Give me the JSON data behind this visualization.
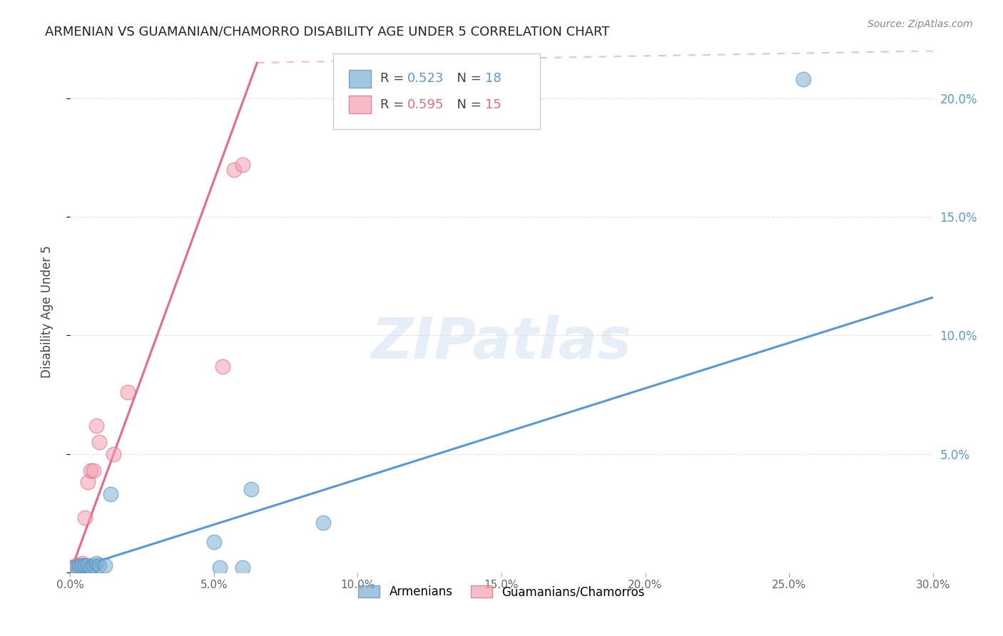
{
  "title": "ARMENIAN VS GUAMANIAN/CHAMORRO DISABILITY AGE UNDER 5 CORRELATION CHART",
  "source": "Source: ZipAtlas.com",
  "ylabel": "Disability Age Under 5",
  "xlim": [
    0.0,
    0.3
  ],
  "ylim": [
    0.0,
    0.22
  ],
  "xticks": [
    0.0,
    0.05,
    0.1,
    0.15,
    0.2,
    0.25,
    0.3
  ],
  "yticks": [
    0.0,
    0.05,
    0.1,
    0.15,
    0.2
  ],
  "xticklabels": [
    "0.0%",
    "5.0%",
    "10.0%",
    "15.0%",
    "20.0%",
    "25.0%",
    "30.0%"
  ],
  "yticklabels_right": [
    "",
    "5.0%",
    "10.0%",
    "15.0%",
    "20.0%"
  ],
  "armenian_x": [
    0.001,
    0.002,
    0.003,
    0.004,
    0.005,
    0.006,
    0.007,
    0.008,
    0.009,
    0.01,
    0.012,
    0.014,
    0.05,
    0.052,
    0.06,
    0.063,
    0.088,
    0.255
  ],
  "armenian_y": [
    0.002,
    0.002,
    0.003,
    0.003,
    0.003,
    0.003,
    0.002,
    0.003,
    0.004,
    0.003,
    0.003,
    0.033,
    0.013,
    0.002,
    0.002,
    0.035,
    0.021,
    0.208
  ],
  "guamanian_x": [
    0.001,
    0.002,
    0.003,
    0.004,
    0.005,
    0.006,
    0.007,
    0.008,
    0.009,
    0.01,
    0.015,
    0.02,
    0.053,
    0.057,
    0.06
  ],
  "guamanian_y": [
    0.002,
    0.003,
    0.002,
    0.004,
    0.023,
    0.038,
    0.043,
    0.043,
    0.062,
    0.055,
    0.05,
    0.076,
    0.087,
    0.17,
    0.172
  ],
  "armenian_R": 0.523,
  "armenian_N": 18,
  "guamanian_R": 0.595,
  "guamanian_N": 15,
  "armenian_color": "#7BAFD4",
  "guamanian_color": "#F4A0B0",
  "armenian_edge_color": "#5588BB",
  "guamanian_edge_color": "#E06080",
  "armenian_line_color": "#5599DD",
  "guamanian_line_color": "#EE6688",
  "arm_line_x0": 0.0,
  "arm_line_y0": 0.001,
  "arm_line_x1": 0.3,
  "arm_line_y1": 0.116,
  "gua_line_solid_x0": 0.0,
  "gua_line_solid_y0": 0.0,
  "gua_line_solid_x1": 0.065,
  "gua_line_solid_y1": 0.215,
  "gua_line_dashed_x0": 0.065,
  "gua_line_dashed_y0": 0.215,
  "gua_line_dashed_x1": 0.3,
  "gua_line_dashed_y1": 0.22,
  "watermark_text": "ZIPatlas",
  "background_color": "#ffffff",
  "grid_color": "#dddddd"
}
